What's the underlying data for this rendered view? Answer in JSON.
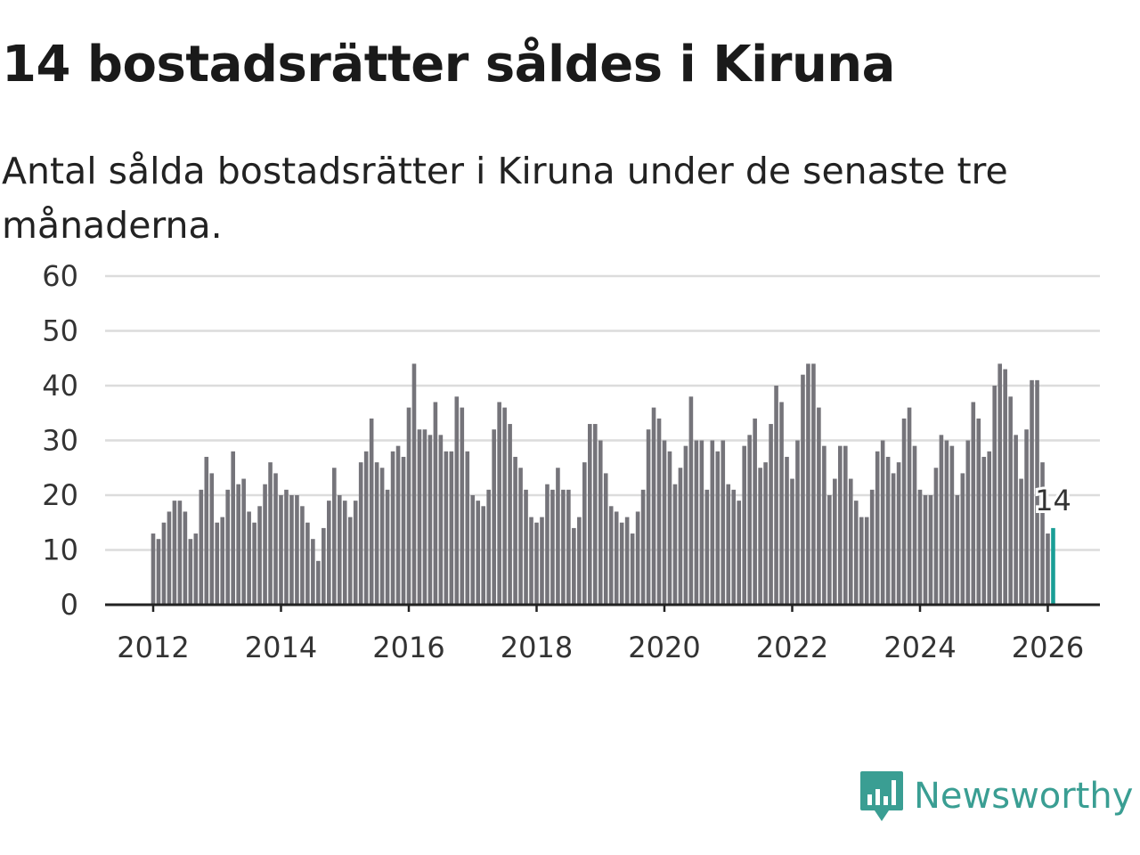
{
  "title": "14 bostadsrätter såldes i Kiruna",
  "subtitle": "Antal sålda bostadsrätter i Kiruna under de senaste tre månaderna.",
  "brand": {
    "name": "Newsworthy",
    "color": "#3a9e93"
  },
  "chart_data": {
    "type": "bar",
    "title": "14 bostadsrätter såldes i Kiruna",
    "xlabel": "",
    "ylabel": "",
    "ylim": [
      0,
      60
    ],
    "yticks": [
      "0",
      "10",
      "20",
      "30",
      "40",
      "50",
      "60"
    ],
    "xticks": [
      "2012",
      "2014",
      "2016",
      "2018",
      "2020",
      "2022",
      "2024",
      "2026"
    ],
    "start": "2012-01",
    "frequency": "monthly",
    "grid": true,
    "bar_color": "#75747a",
    "highlight_color": "#1a9e96",
    "highlight_label": "14",
    "values": [
      13,
      12,
      15,
      17,
      19,
      19,
      17,
      12,
      13,
      21,
      27,
      24,
      15,
      16,
      21,
      28,
      22,
      23,
      17,
      15,
      18,
      22,
      26,
      24,
      20,
      21,
      20,
      20,
      18,
      15,
      12,
      8,
      14,
      19,
      25,
      20,
      19,
      16,
      19,
      26,
      28,
      34,
      26,
      25,
      21,
      28,
      29,
      27,
      36,
      44,
      32,
      32,
      31,
      37,
      31,
      28,
      28,
      38,
      36,
      28,
      20,
      19,
      18,
      21,
      32,
      37,
      36,
      33,
      27,
      25,
      21,
      16,
      15,
      16,
      22,
      21,
      25,
      21,
      21,
      14,
      16,
      26,
      33,
      33,
      30,
      24,
      18,
      17,
      15,
      16,
      13,
      17,
      21,
      32,
      36,
      34,
      30,
      28,
      22,
      25,
      29,
      38,
      30,
      30,
      21,
      30,
      28,
      30,
      22,
      21,
      19,
      29,
      31,
      34,
      25,
      26,
      33,
      40,
      37,
      27,
      23,
      30,
      42,
      44,
      44,
      36,
      29,
      20,
      23,
      29,
      29,
      23,
      19,
      16,
      16,
      21,
      28,
      30,
      27,
      24,
      26,
      34,
      36,
      29,
      21,
      20,
      20,
      25,
      31,
      30,
      29,
      20,
      24,
      30,
      37,
      34,
      27,
      28,
      40,
      44,
      43,
      38,
      31,
      23,
      32,
      41,
      41,
      26,
      13,
      14
    ]
  }
}
